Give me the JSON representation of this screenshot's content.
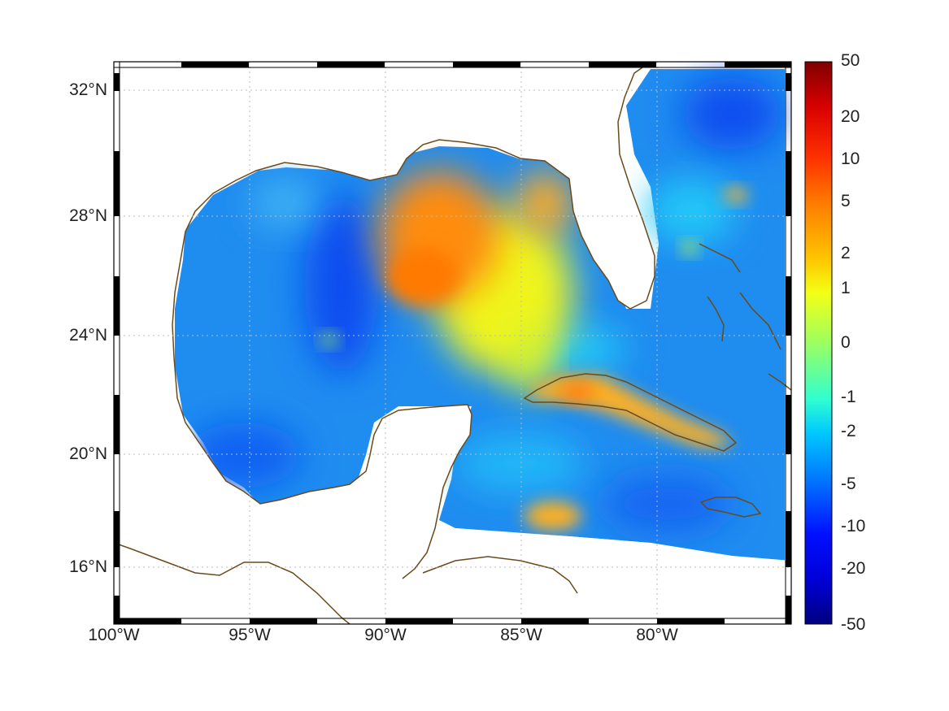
{
  "map": {
    "lat_ticks": [
      "32°N",
      "28°N",
      "24°N",
      "20°N",
      "16°N"
    ],
    "lon_ticks": [
      "100°W",
      "95°W",
      "90°W",
      "85°W",
      "80°W"
    ],
    "colors": {
      "land_outline": "#6b4a1a",
      "land_fill": "#ffffff",
      "grid": "#bbbbbb"
    }
  },
  "colorbar": {
    "labels": [
      "50",
      "20",
      "10",
      "5",
      "2",
      "1",
      "0",
      "-1",
      "-2",
      "-5",
      "-10",
      "-20",
      "-50"
    ],
    "gradient": [
      "#800000",
      "#d80000",
      "#ff3000",
      "#ff7a00",
      "#ffc400",
      "#f4ff14",
      "#9cff60",
      "#30ffd0",
      "#00c8ff",
      "#0070ff",
      "#0010ff",
      "#0000b0",
      "#000080"
    ]
  }
}
